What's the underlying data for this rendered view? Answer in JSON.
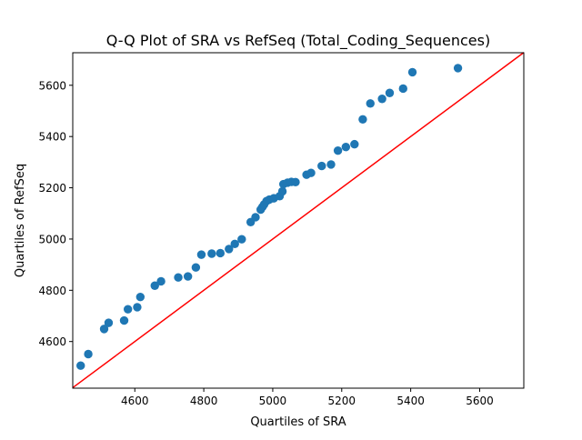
{
  "chart_data": {
    "type": "scatter",
    "title": "Q-Q Plot of SRA vs RefSeq (Total_Coding_Sequences)",
    "xlabel": "Quartiles of SRA",
    "ylabel": "Quartiles of RefSeq",
    "xlim": [
      4420,
      5728
    ],
    "ylim": [
      4418,
      5727
    ],
    "xticks": [
      4600,
      4800,
      5000,
      5200,
      5400,
      5600
    ],
    "yticks": [
      4600,
      4800,
      5000,
      5200,
      5400,
      5600
    ],
    "grid": false,
    "colors": {
      "points": "#1f77b4",
      "reference_line": "#ff0000"
    },
    "reference_line": {
      "x": [
        4420,
        5728
      ],
      "y": [
        4420,
        5728
      ]
    },
    "points": {
      "x": [
        4443,
        4465,
        4511,
        4524,
        4569,
        4580,
        4607,
        4616,
        4658,
        4676,
        4726,
        4754,
        4777,
        4793,
        4823,
        4848,
        4873,
        4890,
        4910,
        4936,
        4950,
        4965,
        4970,
        4975,
        4982,
        4990,
        5003,
        5020,
        5028,
        5031,
        5043,
        5054,
        5066,
        5098,
        5111,
        5142,
        5169,
        5189,
        5212,
        5237,
        5261,
        5283,
        5317,
        5339,
        5378,
        5405,
        5537
      ],
      "y": [
        4506,
        4551,
        4649,
        4673,
        4682,
        4726,
        4734,
        4774,
        4818,
        4835,
        4850,
        4854,
        4889,
        4939,
        4943,
        4945,
        4961,
        4981,
        4999,
        5066,
        5085,
        5115,
        5125,
        5135,
        5148,
        5154,
        5159,
        5167,
        5186,
        5214,
        5220,
        5223,
        5222,
        5251,
        5258,
        5285,
        5291,
        5345,
        5359,
        5370,
        5467,
        5529,
        5547,
        5570,
        5587,
        5651,
        5667
      ]
    }
  }
}
